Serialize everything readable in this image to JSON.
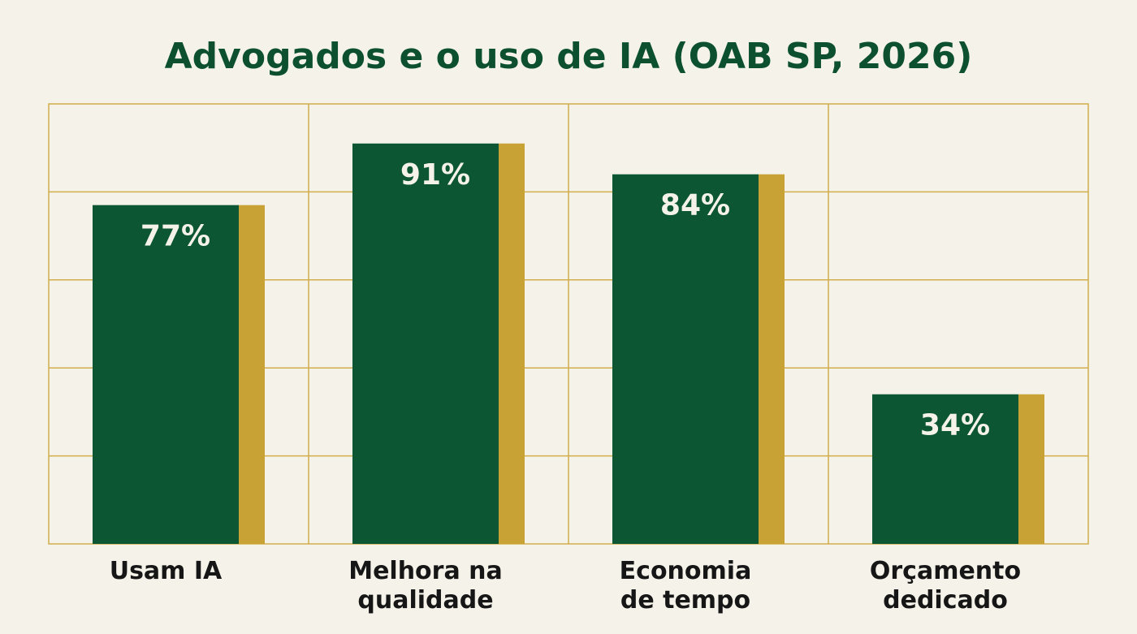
{
  "chart_data": {
    "type": "bar",
    "title": "Advogados e o uso de IA (OAB SP, 2026)",
    "categories": [
      [
        "Usam IA"
      ],
      [
        "Melhora na",
        "qualidade"
      ],
      [
        "Economia",
        "de tempo"
      ],
      [
        "Orçamento",
        "dedicado"
      ]
    ],
    "values": [
      77,
      91,
      84,
      34
    ],
    "data_labels": [
      "77%",
      "91%",
      "84%",
      "34%"
    ],
    "ylim": [
      0,
      100
    ],
    "grid": true,
    "legend": "none",
    "colors": {
      "bar": "#0c5634",
      "bar_accent": "#c9a235",
      "grid": "#d2ae4c",
      "title": "#0c5030",
      "background": "#f4f2e9"
    }
  }
}
